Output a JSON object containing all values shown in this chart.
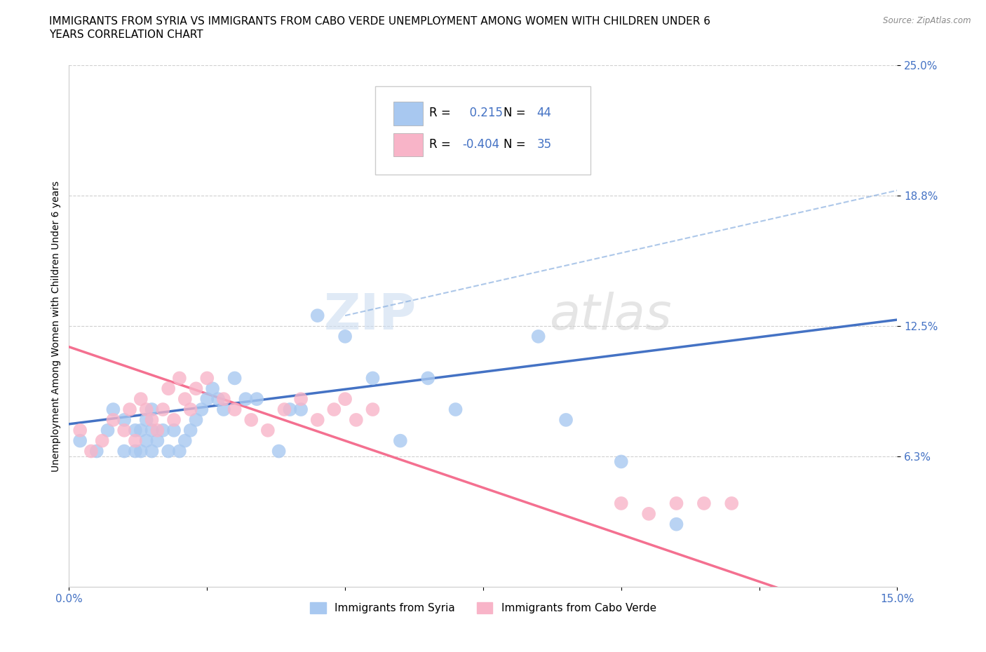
{
  "title_line1": "IMMIGRANTS FROM SYRIA VS IMMIGRANTS FROM CABO VERDE UNEMPLOYMENT AMONG WOMEN WITH CHILDREN UNDER 6",
  "title_line2": "YEARS CORRELATION CHART",
  "source": "Source: ZipAtlas.com",
  "ylabel": "Unemployment Among Women with Children Under 6 years",
  "xlim": [
    0.0,
    0.15
  ],
  "ylim": [
    0.0,
    0.25
  ],
  "xtick_positions": [
    0.0,
    0.025,
    0.05,
    0.075,
    0.1,
    0.125,
    0.15
  ],
  "ytick_positions": [
    0.0625,
    0.125,
    0.1875,
    0.25
  ],
  "ytick_labels": [
    "6.3%",
    "12.5%",
    "18.8%",
    "25.0%"
  ],
  "syria_color": "#a8c8f0",
  "cabo_color": "#f8b4c8",
  "syria_line_color": "#4472c4",
  "cabo_line_color": "#f47090",
  "syria_dash_color": "#8ab0e0",
  "R_syria": 0.215,
  "N_syria": 44,
  "R_cabo": -0.404,
  "N_cabo": 35,
  "watermark_zip": "ZIP",
  "watermark_atlas": "atlas",
  "legend_label_syria": "Immigrants from Syria",
  "legend_label_cabo": "Immigrants from Cabo Verde",
  "syria_scatter_x": [
    0.002,
    0.005,
    0.007,
    0.008,
    0.01,
    0.01,
    0.012,
    0.012,
    0.013,
    0.013,
    0.014,
    0.014,
    0.015,
    0.015,
    0.015,
    0.016,
    0.017,
    0.018,
    0.019,
    0.02,
    0.021,
    0.022,
    0.023,
    0.024,
    0.025,
    0.026,
    0.027,
    0.028,
    0.03,
    0.032,
    0.034,
    0.038,
    0.04,
    0.042,
    0.045,
    0.05,
    0.055,
    0.06,
    0.065,
    0.07,
    0.085,
    0.09,
    0.1,
    0.11
  ],
  "syria_scatter_y": [
    0.07,
    0.065,
    0.075,
    0.085,
    0.065,
    0.08,
    0.065,
    0.075,
    0.065,
    0.075,
    0.07,
    0.08,
    0.065,
    0.075,
    0.085,
    0.07,
    0.075,
    0.065,
    0.075,
    0.065,
    0.07,
    0.075,
    0.08,
    0.085,
    0.09,
    0.095,
    0.09,
    0.085,
    0.1,
    0.09,
    0.09,
    0.065,
    0.085,
    0.085,
    0.13,
    0.12,
    0.1,
    0.07,
    0.1,
    0.085,
    0.12,
    0.08,
    0.06,
    0.03
  ],
  "cabo_scatter_x": [
    0.002,
    0.004,
    0.006,
    0.008,
    0.01,
    0.011,
    0.012,
    0.013,
    0.014,
    0.015,
    0.016,
    0.017,
    0.018,
    0.019,
    0.02,
    0.021,
    0.022,
    0.023,
    0.025,
    0.028,
    0.03,
    0.033,
    0.036,
    0.039,
    0.042,
    0.045,
    0.048,
    0.05,
    0.052,
    0.055,
    0.1,
    0.105,
    0.11,
    0.115,
    0.12
  ],
  "cabo_scatter_y": [
    0.075,
    0.065,
    0.07,
    0.08,
    0.075,
    0.085,
    0.07,
    0.09,
    0.085,
    0.08,
    0.075,
    0.085,
    0.095,
    0.08,
    0.1,
    0.09,
    0.085,
    0.095,
    0.1,
    0.09,
    0.085,
    0.08,
    0.075,
    0.085,
    0.09,
    0.08,
    0.085,
    0.09,
    0.08,
    0.085,
    0.04,
    0.035,
    0.04,
    0.04,
    0.04
  ],
  "title_fontsize": 11,
  "axis_label_fontsize": 10,
  "tick_fontsize": 11,
  "tick_color": "#4472c4",
  "grid_color": "#d0d0d0",
  "background_color": "#ffffff"
}
